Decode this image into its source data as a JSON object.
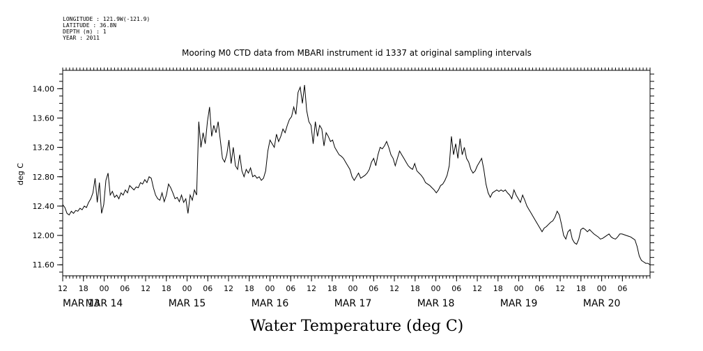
{
  "header": {
    "lines": [
      "LONGITUDE : 121.9W(-121.9)",
      "LATITUDE : 36.8N",
      "DEPTH (m) : 1",
      "YEAR : 2011"
    ]
  },
  "chart_data": {
    "type": "line",
    "title": "Mooring M0 CTD data from MBARI instrument id 1337 at original sampling intervals",
    "xlabel": "Water Temperature (deg C)",
    "ylabel": "deg C",
    "ylim": [
      11.45,
      14.25
    ],
    "yticks": [
      "14.00",
      "13.60",
      "13.20",
      "12.80",
      "12.40",
      "12.00",
      "11.60"
    ],
    "x_range_hours_label": "MAR 13 12:00 to MAR 20 14:00",
    "hour_ticks": [
      "12",
      "18",
      "00",
      "06",
      "12",
      "18",
      "00",
      "06",
      "12",
      "18",
      "00",
      "06",
      "12",
      "18",
      "00",
      "06",
      "12",
      "18",
      "00",
      "06",
      "12",
      "18",
      "00",
      "06",
      "12",
      "18",
      "00",
      "06"
    ],
    "date_labels": [
      "MAR 13",
      "MAR 14",
      "MAR 15",
      "MAR 16",
      "MAR 17",
      "MAR 18",
      "MAR 19",
      "MAR 20"
    ],
    "grid": false,
    "series": [
      {
        "values": [
          [
            0,
            12.42
          ],
          [
            1,
            12.38
          ],
          [
            2,
            12.3
          ],
          [
            3,
            12.28
          ],
          [
            4,
            12.33
          ],
          [
            5,
            12.3
          ],
          [
            6,
            12.34
          ],
          [
            7,
            12.33
          ],
          [
            8,
            12.37
          ],
          [
            9,
            12.35
          ],
          [
            10,
            12.4
          ],
          [
            11,
            12.38
          ],
          [
            12,
            12.45
          ],
          [
            13,
            12.5
          ],
          [
            14,
            12.58
          ],
          [
            15,
            12.78
          ],
          [
            16,
            12.45
          ],
          [
            17,
            12.72
          ],
          [
            18,
            12.3
          ],
          [
            19,
            12.42
          ],
          [
            20,
            12.75
          ],
          [
            21,
            12.85
          ],
          [
            22,
            12.55
          ],
          [
            23,
            12.6
          ],
          [
            24,
            12.52
          ],
          [
            25,
            12.55
          ],
          [
            26,
            12.5
          ],
          [
            27,
            12.58
          ],
          [
            28,
            12.55
          ],
          [
            29,
            12.62
          ],
          [
            30,
            12.58
          ],
          [
            31,
            12.68
          ],
          [
            32,
            12.65
          ],
          [
            33,
            12.62
          ],
          [
            34,
            12.66
          ],
          [
            35,
            12.65
          ],
          [
            36,
            12.72
          ],
          [
            37,
            12.7
          ],
          [
            38,
            12.76
          ],
          [
            39,
            12.72
          ],
          [
            40,
            12.8
          ],
          [
            41,
            12.78
          ],
          [
            42,
            12.65
          ],
          [
            43,
            12.55
          ],
          [
            44,
            12.5
          ],
          [
            45,
            12.48
          ],
          [
            46,
            12.58
          ],
          [
            47,
            12.46
          ],
          [
            48,
            12.55
          ],
          [
            49,
            12.7
          ],
          [
            50,
            12.65
          ],
          [
            51,
            12.58
          ],
          [
            52,
            12.5
          ],
          [
            53,
            12.52
          ],
          [
            54,
            12.46
          ],
          [
            55,
            12.55
          ],
          [
            56,
            12.45
          ],
          [
            57,
            12.5
          ],
          [
            58,
            12.3
          ],
          [
            59,
            12.55
          ],
          [
            60,
            12.48
          ],
          [
            61,
            12.62
          ],
          [
            62,
            12.55
          ],
          [
            63,
            13.55
          ],
          [
            64,
            13.2
          ],
          [
            65,
            13.4
          ],
          [
            66,
            13.25
          ],
          [
            67,
            13.55
          ],
          [
            68,
            13.75
          ],
          [
            69,
            13.35
          ],
          [
            70,
            13.5
          ],
          [
            71,
            13.4
          ],
          [
            72,
            13.55
          ],
          [
            73,
            13.3
          ],
          [
            74,
            13.05
          ],
          [
            75,
            13.0
          ],
          [
            76,
            13.1
          ],
          [
            77,
            13.3
          ],
          [
            78,
            12.98
          ],
          [
            79,
            13.2
          ],
          [
            80,
            12.95
          ],
          [
            81,
            12.9
          ],
          [
            82,
            13.1
          ],
          [
            83,
            12.88
          ],
          [
            84,
            12.8
          ],
          [
            85,
            12.9
          ],
          [
            86,
            12.85
          ],
          [
            87,
            12.92
          ],
          [
            88,
            12.8
          ],
          [
            89,
            12.82
          ],
          [
            90,
            12.78
          ],
          [
            91,
            12.8
          ],
          [
            92,
            12.75
          ],
          [
            93,
            12.78
          ],
          [
            94,
            12.88
          ],
          [
            95,
            13.15
          ],
          [
            96,
            13.3
          ],
          [
            97,
            13.25
          ],
          [
            98,
            13.2
          ],
          [
            99,
            13.38
          ],
          [
            100,
            13.28
          ],
          [
            101,
            13.35
          ],
          [
            102,
            13.45
          ],
          [
            103,
            13.4
          ],
          [
            104,
            13.5
          ],
          [
            105,
            13.58
          ],
          [
            106,
            13.62
          ],
          [
            107,
            13.75
          ],
          [
            108,
            13.65
          ],
          [
            109,
            13.95
          ],
          [
            110,
            14.02
          ],
          [
            111,
            13.8
          ],
          [
            112,
            14.05
          ],
          [
            113,
            13.7
          ],
          [
            114,
            13.55
          ],
          [
            115,
            13.5
          ],
          [
            116,
            13.25
          ],
          [
            117,
            13.55
          ],
          [
            118,
            13.35
          ],
          [
            119,
            13.5
          ],
          [
            120,
            13.45
          ],
          [
            121,
            13.22
          ],
          [
            122,
            13.4
          ],
          [
            123,
            13.35
          ],
          [
            124,
            13.28
          ],
          [
            125,
            13.3
          ],
          [
            126,
            13.2
          ],
          [
            127,
            13.15
          ],
          [
            128,
            13.1
          ],
          [
            129,
            13.08
          ],
          [
            130,
            13.05
          ],
          [
            131,
            13.0
          ],
          [
            132,
            12.95
          ],
          [
            133,
            12.9
          ],
          [
            134,
            12.8
          ],
          [
            135,
            12.75
          ],
          [
            136,
            12.8
          ],
          [
            137,
            12.85
          ],
          [
            138,
            12.78
          ],
          [
            139,
            12.8
          ],
          [
            140,
            12.82
          ],
          [
            141,
            12.85
          ],
          [
            142,
            12.9
          ],
          [
            143,
            13.0
          ],
          [
            144,
            13.05
          ],
          [
            145,
            12.95
          ],
          [
            146,
            13.1
          ],
          [
            147,
            13.2
          ],
          [
            148,
            13.18
          ],
          [
            149,
            13.22
          ],
          [
            150,
            13.28
          ],
          [
            151,
            13.2
          ],
          [
            152,
            13.1
          ],
          [
            153,
            13.05
          ],
          [
            154,
            12.95
          ],
          [
            155,
            13.05
          ],
          [
            156,
            13.15
          ],
          [
            157,
            13.1
          ],
          [
            158,
            13.05
          ],
          [
            159,
            13.0
          ],
          [
            160,
            12.95
          ],
          [
            161,
            12.92
          ],
          [
            162,
            12.9
          ],
          [
            163,
            12.98
          ],
          [
            164,
            12.88
          ],
          [
            165,
            12.85
          ],
          [
            166,
            12.82
          ],
          [
            167,
            12.78
          ],
          [
            168,
            12.72
          ],
          [
            169,
            12.7
          ],
          [
            170,
            12.68
          ],
          [
            171,
            12.65
          ],
          [
            172,
            12.62
          ],
          [
            173,
            12.58
          ],
          [
            174,
            12.62
          ],
          [
            175,
            12.68
          ],
          [
            176,
            12.7
          ],
          [
            177,
            12.75
          ],
          [
            178,
            12.82
          ],
          [
            179,
            12.95
          ],
          [
            180,
            13.35
          ],
          [
            181,
            13.1
          ],
          [
            182,
            13.25
          ],
          [
            183,
            13.05
          ],
          [
            184,
            13.32
          ],
          [
            185,
            13.1
          ],
          [
            186,
            13.2
          ],
          [
            187,
            13.05
          ],
          [
            188,
            13.0
          ],
          [
            189,
            12.9
          ],
          [
            190,
            12.85
          ],
          [
            191,
            12.88
          ],
          [
            192,
            12.95
          ],
          [
            193,
            13.0
          ],
          [
            194,
            13.05
          ],
          [
            195,
            12.9
          ],
          [
            196,
            12.7
          ],
          [
            197,
            12.58
          ],
          [
            198,
            12.52
          ],
          [
            199,
            12.58
          ],
          [
            200,
            12.6
          ],
          [
            201,
            12.62
          ],
          [
            202,
            12.6
          ],
          [
            203,
            12.62
          ],
          [
            204,
            12.6
          ],
          [
            205,
            12.62
          ],
          [
            206,
            12.58
          ],
          [
            207,
            12.55
          ],
          [
            208,
            12.5
          ],
          [
            209,
            12.62
          ],
          [
            210,
            12.55
          ],
          [
            211,
            12.5
          ],
          [
            212,
            12.45
          ],
          [
            213,
            12.55
          ],
          [
            214,
            12.48
          ],
          [
            215,
            12.4
          ],
          [
            216,
            12.35
          ],
          [
            217,
            12.3
          ],
          [
            218,
            12.25
          ],
          [
            219,
            12.2
          ],
          [
            220,
            12.15
          ],
          [
            221,
            12.1
          ],
          [
            222,
            12.05
          ],
          [
            223,
            12.1
          ],
          [
            224,
            12.12
          ],
          [
            225,
            12.15
          ],
          [
            226,
            12.18
          ],
          [
            227,
            12.2
          ],
          [
            228,
            12.25
          ],
          [
            229,
            12.33
          ],
          [
            230,
            12.28
          ],
          [
            231,
            12.15
          ],
          [
            232,
            12.0
          ],
          [
            233,
            11.95
          ],
          [
            234,
            12.05
          ],
          [
            235,
            12.08
          ],
          [
            236,
            11.95
          ],
          [
            237,
            11.9
          ],
          [
            238,
            11.88
          ],
          [
            239,
            11.95
          ],
          [
            240,
            12.08
          ],
          [
            241,
            12.1
          ],
          [
            242,
            12.08
          ],
          [
            243,
            12.05
          ],
          [
            244,
            12.08
          ],
          [
            245,
            12.05
          ],
          [
            246,
            12.02
          ],
          [
            247,
            12.0
          ],
          [
            248,
            11.98
          ],
          [
            249,
            11.95
          ],
          [
            250,
            11.96
          ],
          [
            251,
            11.98
          ],
          [
            252,
            12.0
          ],
          [
            253,
            12.02
          ],
          [
            254,
            11.98
          ],
          [
            255,
            11.96
          ],
          [
            256,
            11.95
          ],
          [
            257,
            11.98
          ],
          [
            258,
            12.02
          ],
          [
            259,
            12.02
          ],
          [
            260,
            12.01
          ],
          [
            261,
            12.0
          ],
          [
            262,
            11.99
          ],
          [
            263,
            11.98
          ],
          [
            264,
            11.96
          ],
          [
            265,
            11.94
          ],
          [
            266,
            11.85
          ],
          [
            267,
            11.72
          ],
          [
            268,
            11.66
          ],
          [
            269,
            11.64
          ],
          [
            270,
            11.62
          ],
          [
            271,
            11.62
          ],
          [
            272,
            11.6
          ]
        ]
      }
    ]
  }
}
